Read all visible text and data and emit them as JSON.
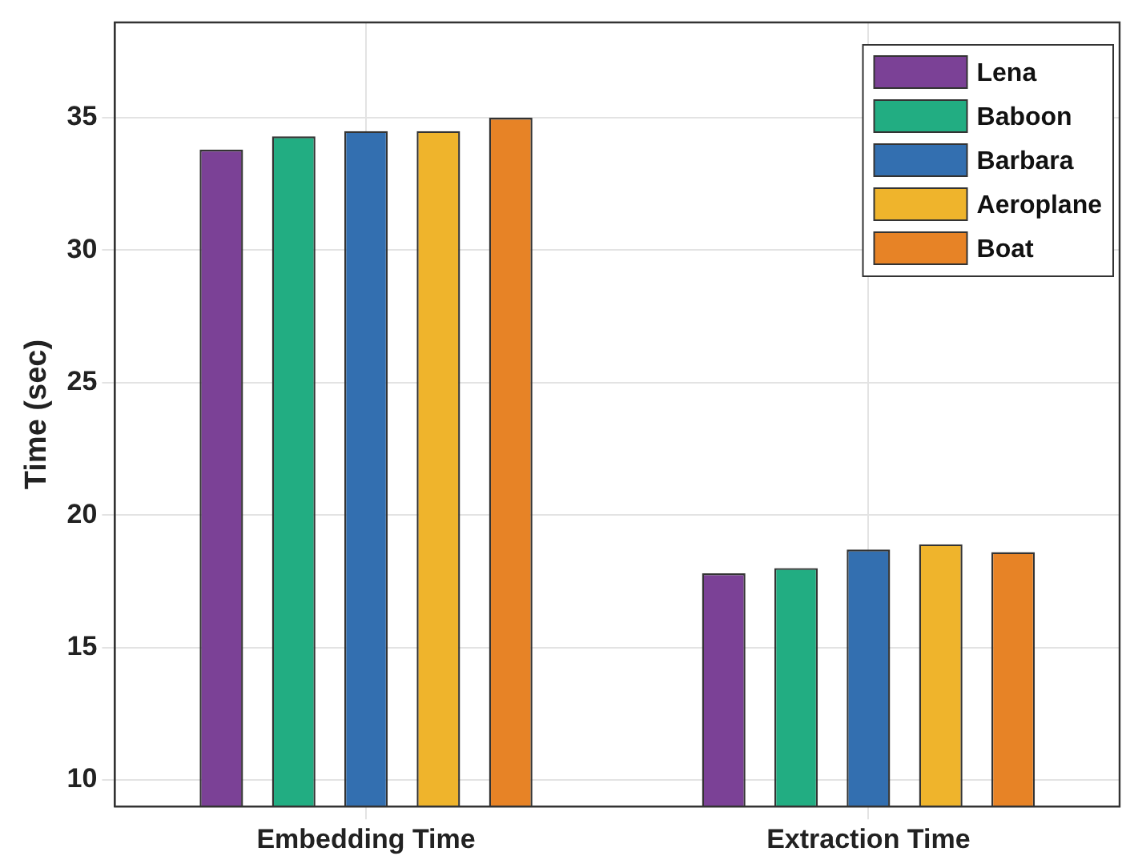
{
  "chart_data": {
    "type": "bar",
    "ylabel": "Time (sec)",
    "categories": [
      "Embedding Time",
      "Extraction Time"
    ],
    "series": [
      {
        "name": "Lena",
        "color": "#7b4196",
        "values": [
          33.8,
          17.8
        ]
      },
      {
        "name": "Baboon",
        "color": "#22ad82",
        "values": [
          34.3,
          18.0
        ]
      },
      {
        "name": "Barbara",
        "color": "#336fb0",
        "values": [
          34.5,
          18.7
        ]
      },
      {
        "name": "Aeroplane",
        "color": "#efb42c",
        "values": [
          34.5,
          18.9
        ]
      },
      {
        "name": "Boat",
        "color": "#e78326",
        "values": [
          35.0,
          18.6
        ]
      }
    ],
    "ylim": [
      9,
      38.6
    ],
    "yticks": [
      10,
      15,
      20,
      25,
      30,
      35
    ],
    "grid": true,
    "legend": "top right"
  }
}
